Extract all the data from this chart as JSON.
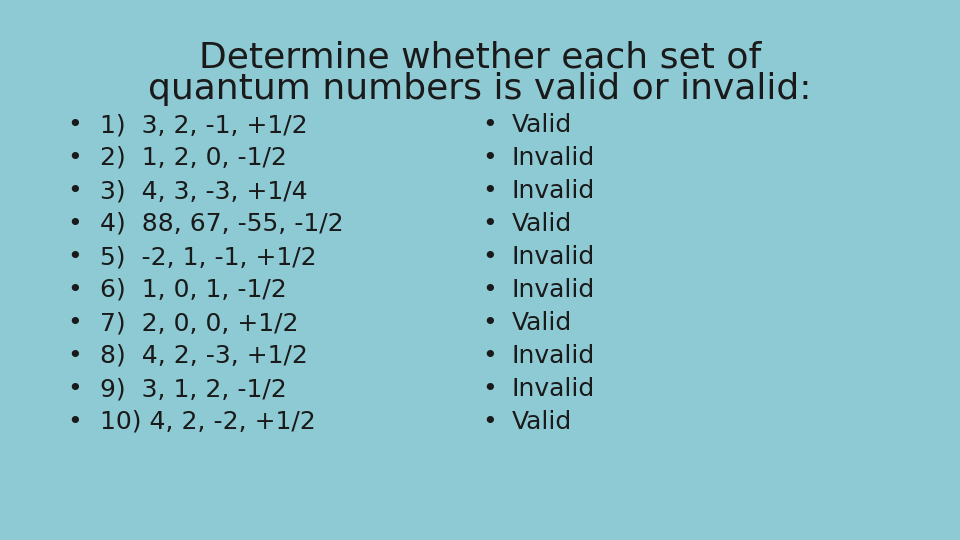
{
  "title_line1": "Determine whether each set of",
  "title_line2": "quantum numbers is valid or invalid:",
  "background_color": "#8ECAD4",
  "title_fontsize": 26,
  "title_fontweight": "normal",
  "text_color": "#1a1a1a",
  "left_items": [
    "1)  3, 2, -1, +1/2",
    "2)  1, 2, 0, -1/2",
    "3)  4, 3, -3, +1/4",
    "4)  88, 67, -55, -1/2",
    "5)  -2, 1, -1, +1/2",
    "6)  1, 0, 1, -1/2",
    "7)  2, 0, 0, +1/2",
    "8)  4, 2, -3, +1/2",
    "9)  3, 1, 2, -1/2",
    "10) 4, 2, -2, +1/2"
  ],
  "right_items": [
    "Valid",
    "Invalid",
    "Invalid",
    "Valid",
    "Invalid",
    "Invalid",
    "Valid",
    "Invalid",
    "Invalid",
    "Valid"
  ],
  "item_fontsize": 18,
  "bullet": "•"
}
